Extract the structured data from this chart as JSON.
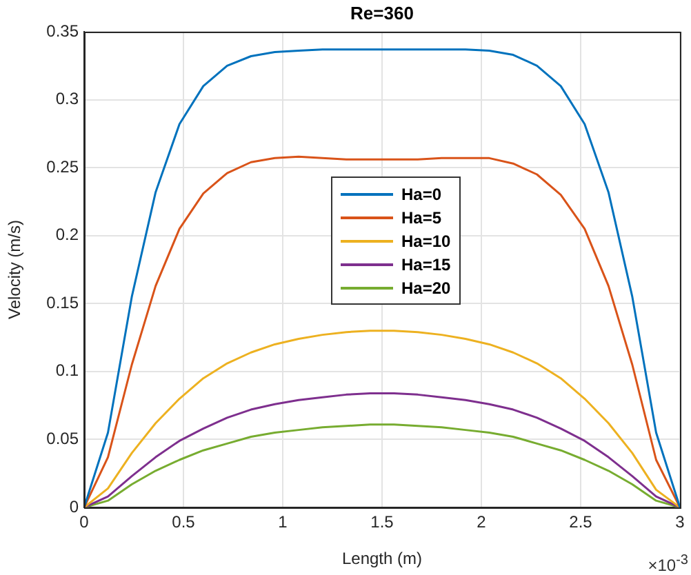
{
  "chart_data": {
    "type": "line",
    "title": "Re=360",
    "xlabel": "Length (m)",
    "ylabel": "Velocity (m/s)",
    "x": [
      0,
      0.12,
      0.24,
      0.36,
      0.48,
      0.6,
      0.72,
      0.84,
      0.96,
      1.08,
      1.2,
      1.32,
      1.44,
      1.56,
      1.68,
      1.8,
      1.92,
      2.04,
      2.16,
      2.28,
      2.4,
      2.52,
      2.64,
      2.76,
      2.88,
      3
    ],
    "series": [
      {
        "name": "Ha=0",
        "color": "#0072bd",
        "values": [
          0,
          0.055,
          0.155,
          0.232,
          0.282,
          0.31,
          0.325,
          0.332,
          0.335,
          0.336,
          0.337,
          0.337,
          0.337,
          0.337,
          0.337,
          0.337,
          0.337,
          0.336,
          0.333,
          0.325,
          0.31,
          0.282,
          0.232,
          0.155,
          0.055,
          0
        ]
      },
      {
        "name": "Ha=5",
        "color": "#d95319",
        "values": [
          0,
          0.037,
          0.105,
          0.163,
          0.205,
          0.231,
          0.246,
          0.254,
          0.257,
          0.258,
          0.257,
          0.256,
          0.256,
          0.256,
          0.256,
          0.257,
          0.257,
          0.257,
          0.253,
          0.245,
          0.23,
          0.205,
          0.163,
          0.105,
          0.035,
          0
        ]
      },
      {
        "name": "Ha=10",
        "color": "#edb120",
        "values": [
          0,
          0.014,
          0.04,
          0.062,
          0.08,
          0.095,
          0.106,
          0.114,
          0.12,
          0.124,
          0.127,
          0.129,
          0.13,
          0.13,
          0.129,
          0.127,
          0.124,
          0.12,
          0.114,
          0.106,
          0.095,
          0.08,
          0.062,
          0.04,
          0.013,
          0
        ]
      },
      {
        "name": "Ha=15",
        "color": "#7e2f8e",
        "values": [
          0,
          0.008,
          0.023,
          0.037,
          0.049,
          0.058,
          0.066,
          0.072,
          0.076,
          0.079,
          0.081,
          0.083,
          0.084,
          0.084,
          0.083,
          0.081,
          0.079,
          0.076,
          0.072,
          0.066,
          0.058,
          0.049,
          0.037,
          0.023,
          0.008,
          0
        ]
      },
      {
        "name": "Ha=20",
        "color": "#77ac30",
        "values": [
          0,
          0.005,
          0.017,
          0.027,
          0.035,
          0.042,
          0.047,
          0.052,
          0.055,
          0.057,
          0.059,
          0.06,
          0.061,
          0.061,
          0.06,
          0.059,
          0.057,
          0.055,
          0.052,
          0.047,
          0.042,
          0.035,
          0.027,
          0.017,
          0.005,
          0
        ]
      }
    ],
    "xlim": [
      0,
      3
    ],
    "xticks": [
      0,
      0.5,
      1,
      1.5,
      2,
      2.5,
      3
    ],
    "ylim": [
      0,
      0.35
    ],
    "yticks": [
      0,
      0.05,
      0.1,
      0.15,
      0.2,
      0.25,
      0.3,
      0.35
    ],
    "annotations": [
      "×10$^{-3}$"
    ],
    "grid": true,
    "legend": "center",
    "marker": "none",
    "line_style": "solid"
  }
}
